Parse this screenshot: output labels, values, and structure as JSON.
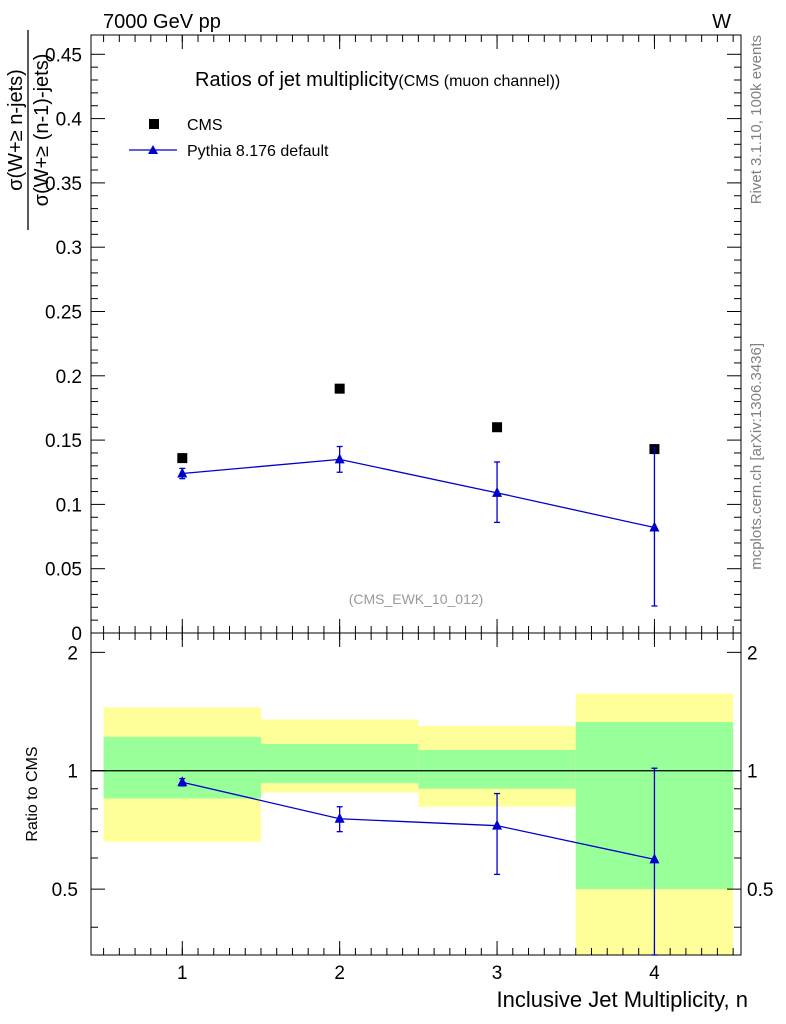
{
  "header": {
    "energy_label": "7000 GeV pp",
    "process_label": "W"
  },
  "side_text": {
    "rivet": "Rivet 3.1.10,  100k events",
    "mcplots": "mcplots.cern.ch [arXiv:1306.3436]"
  },
  "colors": {
    "mc": "#0000cc",
    "data": "#000000",
    "band_inner": "#99ff99",
    "band_outer": "#ffff99"
  },
  "chart_data": [
    {
      "type": "scatter",
      "title": "Ratios of jet multiplicity",
      "subtitle": "(CMS (muon channel))",
      "watermark": "(CMS_EWK_10_012)",
      "ylabel_numerator": "σ(W+≥ n-jets)",
      "ylabel_denominator": "σ(W+≥ (n-1)-jets)",
      "xlim": [
        0.42,
        4.55
      ],
      "ylim": [
        0,
        0.465
      ],
      "yticks": [
        0,
        0.05,
        0.1,
        0.15,
        0.2,
        0.25,
        0.3,
        0.35,
        0.4,
        0.45
      ],
      "ytick_labels": [
        "0",
        "0.05",
        "0.1",
        "0.15",
        "0.2",
        "0.25",
        "0.3",
        "0.35",
        "0.4",
        "0.45"
      ],
      "legend_position": "top-left",
      "series": [
        {
          "name": "CMS",
          "marker": "square",
          "x": [
            1,
            2,
            3,
            4
          ],
          "y": [
            0.136,
            0.19,
            0.16,
            0.143
          ]
        },
        {
          "name": "Pythia 8.176 default",
          "marker": "triangle",
          "line": true,
          "x": [
            1,
            2,
            3,
            4
          ],
          "y": [
            0.124,
            0.135,
            0.109,
            0.082
          ],
          "err_low": [
            0.004,
            0.01,
            0.023,
            0.061
          ],
          "err_high": [
            0.004,
            0.01,
            0.024,
            0.062
          ]
        }
      ]
    },
    {
      "type": "scatter",
      "ylabel": "Ratio to CMS",
      "xlabel": "Inclusive Jet Multiplicity, n",
      "xlim": [
        0.42,
        4.55
      ],
      "ylim": [
        0.34,
        2.24
      ],
      "xticks": [
        1,
        2,
        3,
        4
      ],
      "xtick_labels": [
        "1",
        "2",
        "3",
        "4"
      ],
      "yticks": [
        0.5,
        1,
        2
      ],
      "ytick_labels": [
        "0.5",
        "1",
        "2"
      ],
      "reference_line": 1,
      "bands": [
        {
          "x_low": 0.5,
          "x_high": 1.5,
          "inner": [
            0.85,
            1.22
          ],
          "outer": [
            0.66,
            1.45
          ]
        },
        {
          "x_low": 1.5,
          "x_high": 2.5,
          "inner": [
            0.93,
            1.17
          ],
          "outer": [
            0.88,
            1.35
          ]
        },
        {
          "x_low": 2.5,
          "x_high": 3.5,
          "inner": [
            0.9,
            1.13
          ],
          "outer": [
            0.81,
            1.3
          ]
        },
        {
          "x_low": 3.5,
          "x_high": 4.5,
          "inner": [
            0.5,
            1.33
          ],
          "outer": [
            0.34,
            1.57
          ]
        }
      ],
      "series": [
        {
          "name": "Pythia 8.176 default",
          "marker": "triangle",
          "line": true,
          "x": [
            1,
            2,
            3,
            4
          ],
          "y": [
            0.935,
            0.755,
            0.725,
            0.595
          ],
          "err_low": [
            0.02,
            0.055,
            0.18,
            0.26
          ],
          "err_high": [
            0.02,
            0.055,
            0.15,
            0.42
          ]
        }
      ]
    }
  ]
}
